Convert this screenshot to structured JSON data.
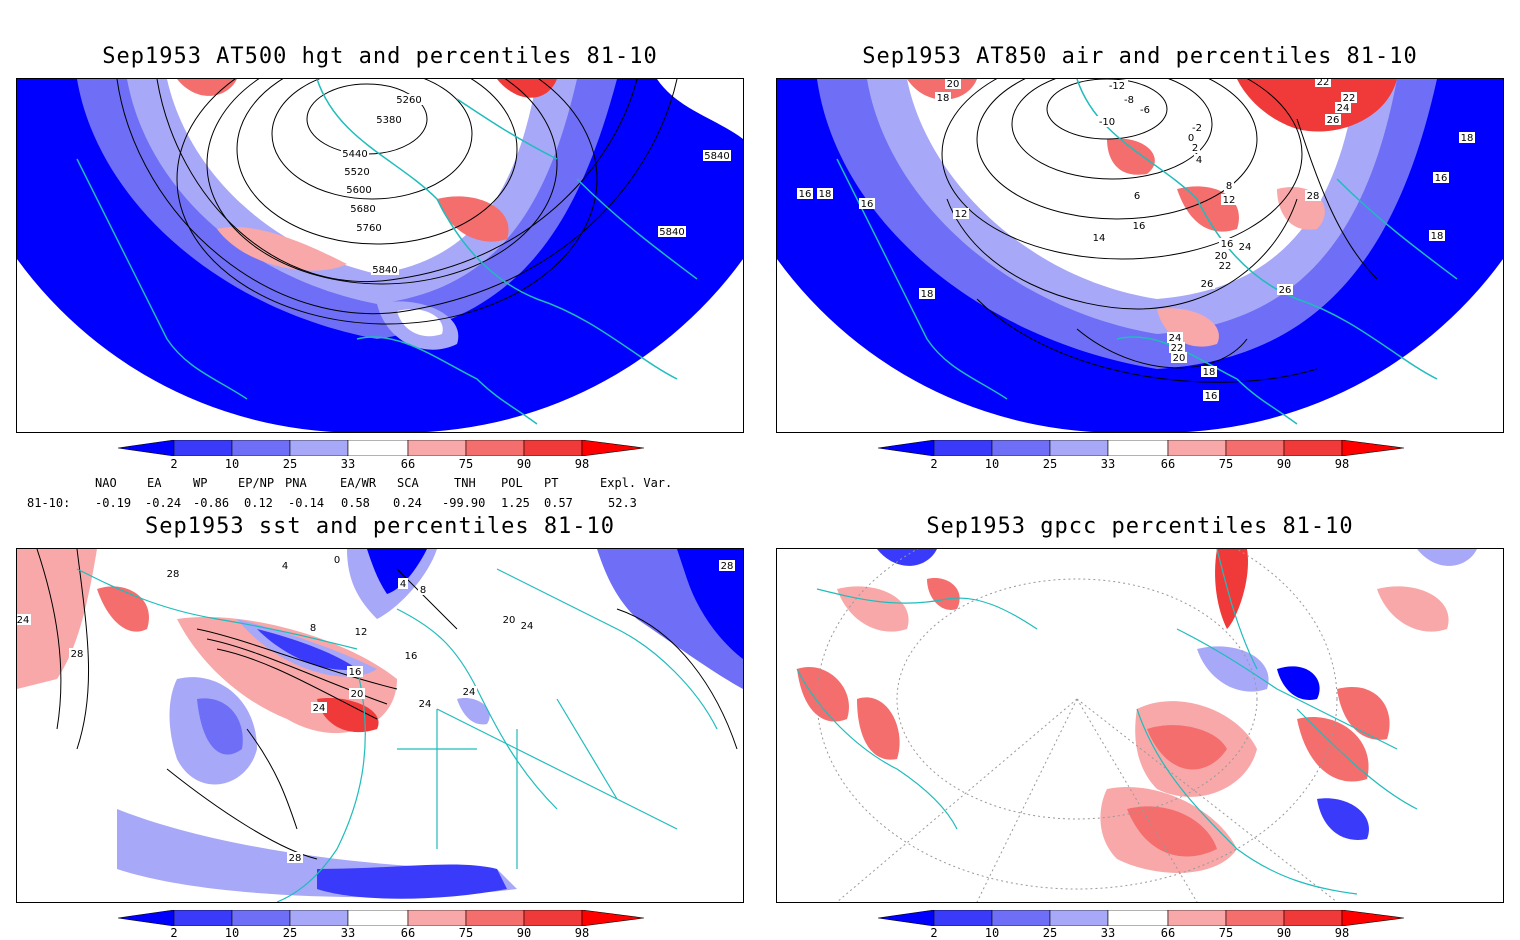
{
  "panels": {
    "p1": {
      "title": "Sep1953 AT500 hgt and percentiles 81-10",
      "contour_labels": [
        "5260",
        "5380",
        "5440",
        "5520",
        "5600",
        "5680",
        "5760",
        "5840",
        "5840",
        "5840"
      ]
    },
    "p2": {
      "title": "Sep1953 AT850 air and percentiles 81-10",
      "contour_labels": [
        "20",
        "18",
        "-12",
        "-8",
        "-6",
        "-10",
        "-2",
        "0",
        "2",
        "4",
        "22",
        "22",
        "24",
        "26",
        "18",
        "16",
        "16",
        "18",
        "12",
        "14",
        "16",
        "16",
        "20",
        "22",
        "24",
        "16",
        "18",
        "28",
        "26",
        "26",
        "24",
        "22",
        "20",
        "18",
        "16",
        "16",
        "18",
        "6",
        "12",
        "8"
      ]
    },
    "p3": {
      "title": "Sep1953 sst and percentiles 81-10",
      "contour_labels": [
        "28",
        "24",
        "28",
        "4",
        "0",
        "4",
        "8",
        "8",
        "12",
        "16",
        "16",
        "20",
        "24",
        "24",
        "24",
        "20",
        "24",
        "28",
        "28"
      ]
    },
    "p4": {
      "title": "Sep1953 gpcc percentiles 81-10"
    }
  },
  "colorbar": {
    "ticks": [
      "2",
      "10",
      "25",
      "33",
      "66",
      "75",
      "90",
      "98"
    ],
    "colors": {
      "below2": "#0000ff",
      "b10": "#3a3afa",
      "b25": "#6e6ef6",
      "b33": "#a8a8f8",
      "neutral": "#ffffff",
      "a66": "#f8a8a8",
      "a75": "#f46e6e",
      "a90": "#f03a3a",
      "above98": "#ff0000"
    }
  },
  "teleconnections": {
    "headers": [
      "NAO",
      "EA",
      "WP",
      "EP/NP",
      "PNA",
      "EA/WR",
      "SCA",
      "TNH",
      "POL",
      "PT",
      "Expl. Var."
    ],
    "row_label": "81-10:",
    "values": [
      "-0.19",
      "-0.24",
      "-0.86",
      "0.12",
      "-0.14",
      "0.58",
      "0.24",
      "-99.90",
      "1.25",
      "0.57",
      "52.3"
    ]
  },
  "colors": {
    "coast": "#1fbcbc",
    "contour": "#000000",
    "frame": "#000000"
  }
}
